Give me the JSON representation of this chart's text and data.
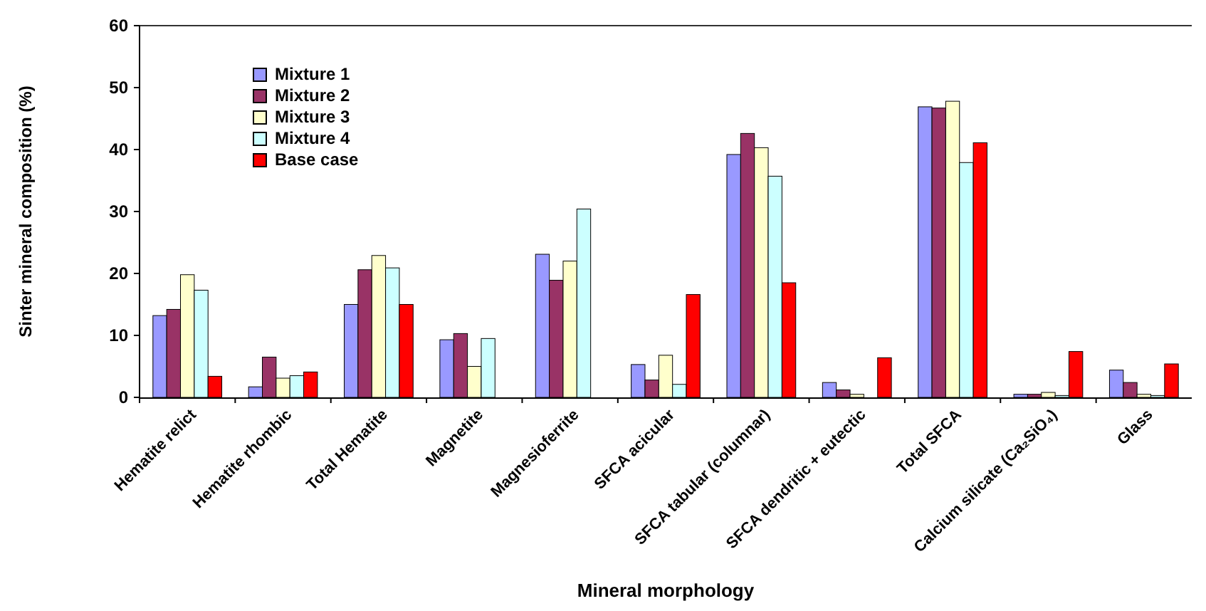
{
  "chart_data": {
    "type": "bar",
    "xlabel": "Mineral morphology",
    "ylabel": "Sinter mineral composition (%)",
    "categories": [
      "Hematite relict",
      "Hematite rhombic",
      "Total Hematite",
      "Magnetite",
      "Magnesioferrite",
      "SFCA acicular",
      "SFCA tabular (columnar)",
      "SFCA dendritic + eutectic",
      "Total SFCA",
      "Calcium silicate (Ca₂SiO₄)",
      "Glass"
    ],
    "series": [
      {
        "name": "Mixture 1",
        "color": "#9999ff",
        "values": [
          13.2,
          1.7,
          15.0,
          9.3,
          23.1,
          5.3,
          39.2,
          2.4,
          46.9,
          0.5,
          4.4
        ]
      },
      {
        "name": "Mixture 2",
        "color": "#993366",
        "values": [
          14.2,
          6.5,
          20.6,
          10.3,
          18.9,
          2.8,
          42.6,
          1.2,
          46.7,
          0.5,
          2.4
        ]
      },
      {
        "name": "Mixture 3",
        "color": "#ffffcc",
        "values": [
          19.8,
          3.1,
          22.9,
          5.0,
          22.0,
          6.8,
          40.3,
          0.5,
          47.8,
          0.8,
          0.5
        ]
      },
      {
        "name": "Mixture 4",
        "color": "#ccffff",
        "values": [
          17.3,
          3.5,
          20.9,
          9.5,
          30.4,
          2.1,
          35.7,
          0,
          37.9,
          0.3,
          0.3
        ]
      },
      {
        "name": "Base case",
        "color": "#ff0000",
        "values": [
          3.4,
          4.1,
          15.0,
          0,
          0,
          16.6,
          18.5,
          6.4,
          41.1,
          7.4,
          5.4
        ]
      }
    ],
    "ylim": [
      0,
      60
    ],
    "yticks": [
      0,
      10,
      20,
      30,
      40,
      50,
      60
    ],
    "grid": false,
    "legend": "top left"
  }
}
